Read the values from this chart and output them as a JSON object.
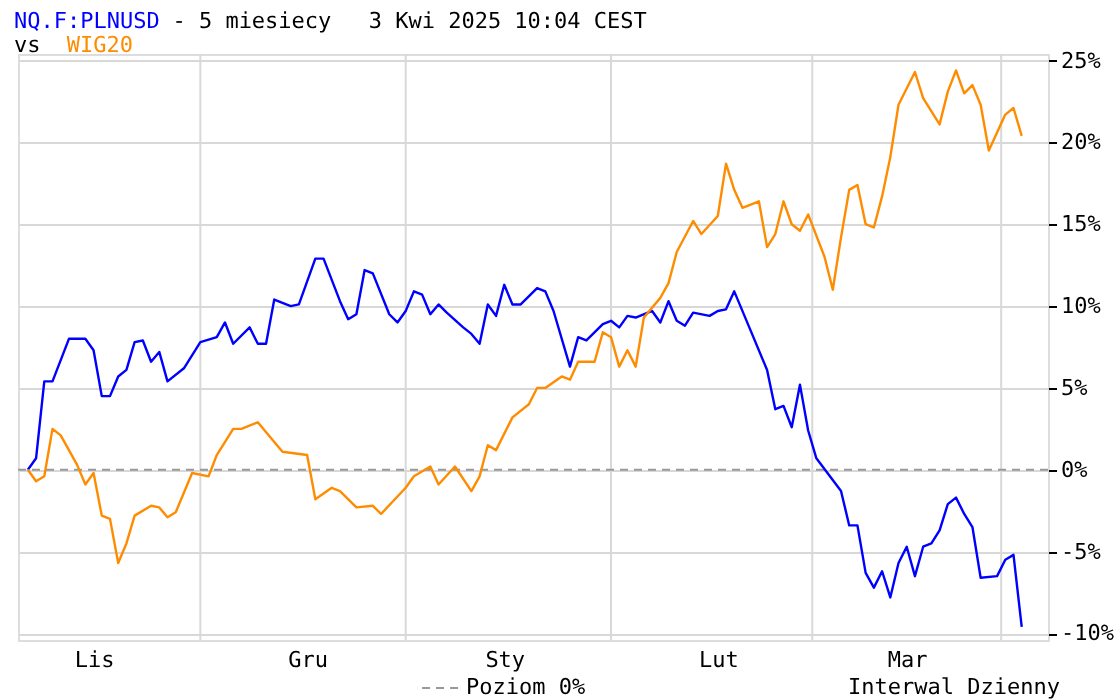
{
  "chart_data": {
    "type": "line",
    "title": "- 5 miesiecy",
    "annotations": [
      "3 Kwi 2025 10:04 CEST",
      "vs",
      "Interwal Dzienny"
    ],
    "categories": [
      null,
      null,
      null,
      null,
      null,
      null,
      null,
      null,
      "Lis",
      null,
      null,
      null,
      null,
      null,
      null,
      null,
      null,
      null,
      null,
      null,
      null,
      null,
      null,
      null,
      null,
      null,
      null,
      null,
      null,
      null,
      null,
      null,
      null,
      null,
      "Gru",
      null,
      null,
      null,
      null,
      null,
      null,
      null,
      null,
      null,
      null,
      null,
      null,
      null,
      null,
      null,
      null,
      null,
      null,
      null,
      null,
      null,
      null,
      null,
      "Sty",
      null,
      null,
      null,
      null,
      null,
      null,
      null,
      null,
      null,
      null,
      null,
      null,
      null,
      null,
      null,
      null,
      null,
      null,
      null,
      null,
      null,
      null,
      null,
      null,
      null,
      "Lut",
      null,
      null,
      null,
      null,
      null,
      null,
      null,
      null,
      null,
      null,
      null,
      null,
      null,
      null,
      null,
      null,
      null,
      null,
      null,
      null,
      null,
      null,
      "Mar",
      null,
      null,
      null,
      null,
      null,
      null,
      null,
      null,
      null,
      null,
      null,
      null,
      null,
      null
    ],
    "ylim": [
      -10.4,
      25.4
    ],
    "yticks": [
      {
        "value": -10,
        "label": "-10%"
      },
      {
        "value": -5,
        "label": "-5%"
      },
      {
        "value": 0,
        "label": "0%"
      },
      {
        "value": 5,
        "label": "5%"
      },
      {
        "value": 10,
        "label": "10%"
      },
      {
        "value": 15,
        "label": "15%"
      },
      {
        "value": 20,
        "label": "20%"
      },
      {
        "value": 25,
        "label": "25%"
      }
    ],
    "grid": true,
    "marker": "none",
    "line_style": "solid",
    "ref_lines": [
      {
        "axis": "y",
        "value": 0,
        "label": "Poziom 0%",
        "color": "#999999",
        "line_style": "dashed"
      }
    ],
    "series": [
      {
        "name": "NQ.F:PLNUSD",
        "color": "#0000ff",
        "values": [
          0,
          0.7,
          5.4,
          5.4,
          null,
          8.0,
          null,
          8.0,
          7.3,
          4.5,
          4.5,
          5.7,
          6.1,
          7.8,
          7.9,
          6.6,
          7.2,
          5.4,
          null,
          6.2,
          null,
          7.8,
          null,
          8.1,
          9.0,
          7.7,
          null,
          8.7,
          7.7,
          7.7,
          10.4,
          null,
          10.0,
          10.1,
          null,
          12.9,
          12.9,
          null,
          10.3,
          9.2,
          9.5,
          12.2,
          12.0,
          null,
          9.5,
          9.0,
          9.7,
          10.9,
          10.7,
          9.5,
          10.1,
          9.6,
          null,
          8.7,
          8.3,
          7.7,
          10.1,
          9.4,
          11.3,
          10.1,
          10.1,
          null,
          11.1,
          10.9,
          9.7,
          null,
          6.3,
          8.1,
          7.9,
          null,
          8.9,
          9.1,
          8.7,
          9.4,
          9.3,
          null,
          9.7,
          9.0,
          10.3,
          9.1,
          8.8,
          9.6,
          null,
          9.4,
          9.7,
          9.8,
          10.9,
          null,
          8.5,
          null,
          6.1,
          3.7,
          3.9,
          2.6,
          5.2,
          2.4,
          0.7,
          null,
          null,
          -1.3,
          -3.4,
          -3.4,
          -6.3,
          -7.2,
          -6.2,
          -7.8,
          -5.7,
          -4.7,
          -6.5,
          -4.7,
          -4.5,
          -3.7,
          -2.1,
          -1.7,
          -2.7,
          -3.5,
          -6.6,
          null,
          -6.5,
          -5.5,
          -5.2,
          -9.6
        ]
      },
      {
        "name": "WIG20",
        "color": "#ff8c00",
        "values": [
          0,
          -0.7,
          -0.4,
          2.5,
          2.1,
          null,
          0.3,
          -0.9,
          -0.2,
          -2.8,
          -3.0,
          -5.7,
          -4.5,
          -2.8,
          null,
          -2.2,
          -2.3,
          -2.9,
          -2.6,
          null,
          -0.2,
          null,
          -0.4,
          0.9,
          null,
          2.5,
          2.5,
          null,
          2.9,
          null,
          1.7,
          1.1,
          null,
          null,
          0.9,
          -1.8,
          null,
          -1.1,
          -1.3,
          null,
          -2.3,
          null,
          -2.2,
          -2.7,
          null,
          null,
          -1.1,
          -0.4,
          null,
          0.2,
          -0.9,
          null,
          0.2,
          null,
          -1.3,
          -0.4,
          1.5,
          1.2,
          null,
          3.2,
          null,
          4.0,
          5.0,
          5.0,
          null,
          5.7,
          5.5,
          6.6,
          null,
          6.6,
          8.4,
          8.1,
          6.3,
          7.3,
          6.3,
          9.3,
          null,
          10.5,
          11.4,
          13.3,
          null,
          15.2,
          14.4,
          null,
          15.5,
          18.7,
          17.1,
          16.0,
          null,
          16.4,
          13.6,
          14.4,
          16.4,
          15.0,
          14.6,
          15.6,
          null,
          13.0,
          11.0,
          14.2,
          17.1,
          17.4,
          15.0,
          14.8,
          16.7,
          19.1,
          22.3,
          null,
          24.3,
          22.7,
          null,
          21.1,
          23.1,
          24.4,
          23.0,
          23.5,
          22.3,
          19.5,
          null,
          21.7,
          22.1,
          20.4
        ]
      }
    ]
  }
}
